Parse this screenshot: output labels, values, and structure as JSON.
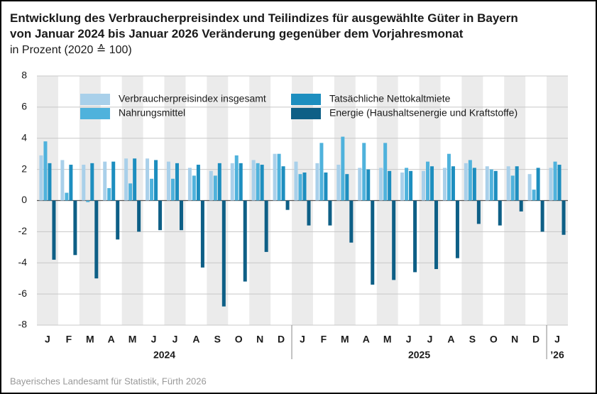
{
  "chart_data": {
    "type": "bar",
    "title": [
      "Entwicklung des Verbraucherpreisindex und Teilindizes für ausgewählte Güter in Bayern",
      "von Januar 2024 bis Januar 2026 Veränderung gegenüber dem Vorjahresmonat"
    ],
    "subtitle": "in Prozent (2020 ≙ 100)",
    "source": "Bayerisches Landesamt für Statistik, Fürth 2026",
    "categories": [
      "J",
      "F",
      "M",
      "A",
      "M",
      "J",
      "J",
      "A",
      "S",
      "O",
      "N",
      "D",
      "J",
      "F",
      "M",
      "A",
      "M",
      "J",
      "J",
      "A",
      "S",
      "O",
      "N",
      "D",
      "J"
    ],
    "category_years": [
      "2024",
      "2024",
      "2024",
      "2024",
      "2024",
      "2024",
      "2024",
      "2024",
      "2024",
      "2024",
      "2024",
      "2024",
      "2025",
      "2025",
      "2025",
      "2025",
      "2025",
      "2025",
      "2025",
      "2025",
      "2025",
      "2025",
      "2025",
      "2025",
      "’26"
    ],
    "series": [
      {
        "name": "Verbraucherpreisindex insgesamt",
        "color": "#a9d0ea",
        "values": [
          2.9,
          2.6,
          2.3,
          2.5,
          2.7,
          2.7,
          2.5,
          2.1,
          1.9,
          2.4,
          2.6,
          3.0,
          2.5,
          2.4,
          2.3,
          2.1,
          2.1,
          1.8,
          1.9,
          2.1,
          2.4,
          2.2,
          2.2,
          1.7,
          2.1
        ]
      },
      {
        "name": "Nahrungsmittel",
        "color": "#4fb2dc",
        "values": [
          3.8,
          0.5,
          -0.1,
          0.8,
          1.1,
          1.4,
          1.4,
          1.6,
          1.6,
          2.9,
          2.4,
          3.0,
          1.7,
          3.7,
          4.1,
          3.7,
          3.7,
          2.1,
          2.5,
          3.0,
          2.6,
          2.0,
          1.6,
          0.7,
          2.5
        ]
      },
      {
        "name": "Tatsächliche Nettokaltmiete",
        "color": "#1d8ebf",
        "values": [
          2.4,
          2.3,
          2.4,
          2.5,
          2.7,
          2.6,
          2.4,
          2.3,
          2.4,
          2.4,
          2.3,
          2.2,
          1.8,
          1.8,
          1.7,
          2.0,
          1.9,
          1.9,
          2.2,
          2.2,
          2.1,
          1.9,
          2.2,
          2.1,
          2.3
        ]
      },
      {
        "name": "Energie (Haushaltsenergie und Kraftstoffe)",
        "color": "#0e5f86",
        "values": [
          -3.8,
          -3.5,
          -5.0,
          -2.5,
          -2.0,
          -1.9,
          -1.9,
          -4.3,
          -6.8,
          -5.2,
          -3.3,
          -0.6,
          -1.6,
          -1.6,
          -2.7,
          -5.4,
          -5.1,
          -4.6,
          -4.4,
          -3.7,
          -1.5,
          -1.6,
          -0.7,
          -2.0,
          -2.2
        ]
      }
    ],
    "ylim": [
      -8,
      8
    ],
    "yticks": [
      -8,
      -6,
      -4,
      -2,
      0,
      2,
      4,
      6,
      8
    ],
    "grid": true
  }
}
